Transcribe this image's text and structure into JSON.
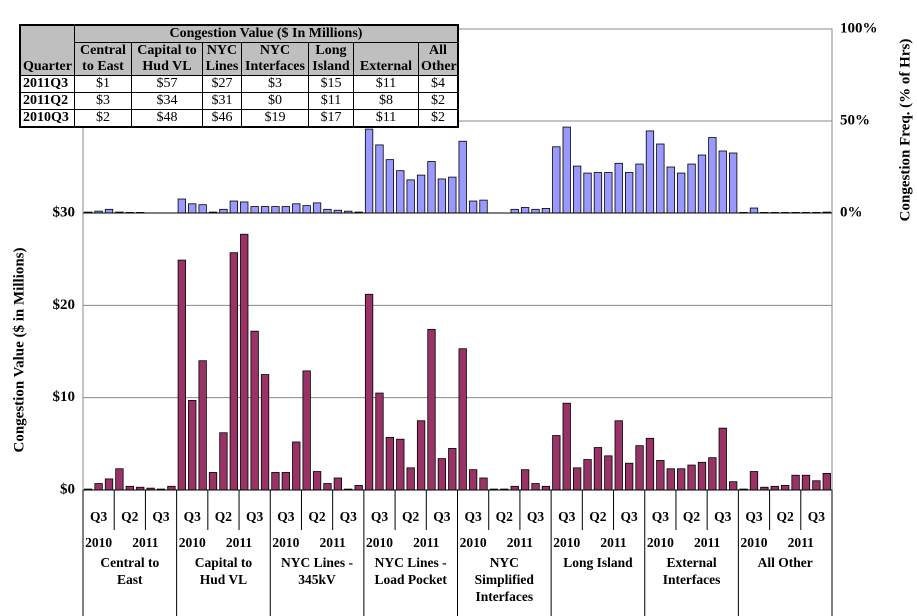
{
  "chart_data": {
    "type": "bar",
    "y_label": "Congestion Value ($ in Millions)",
    "y2_label": "Congestion Freq. (% of Hrs)",
    "groups": [
      "Central to East",
      "Capital to Hud VL",
      "NYC Lines - 345kV",
      "NYC Lines - Load Pocket",
      "NYC Simplified Interfaces",
      "Long Island",
      "External Interfaces",
      "All Other"
    ],
    "quarters": [
      "Q3",
      "Q2",
      "Q3"
    ],
    "years": [
      "2010",
      "2011"
    ],
    "series": [
      {
        "color": "#993366",
        "values": [
          [
            0.1,
            0.7,
            1.2,
            2.3,
            0.4,
            0.3,
            0.2,
            0.1,
            0.4
          ],
          [
            24.9,
            9.7,
            14.0,
            1.9,
            6.2,
            25.7,
            27.7,
            17.2,
            12.5
          ],
          [
            1.9,
            1.9,
            5.2,
            12.9,
            2.0,
            0.7,
            1.3,
            0.1,
            0.5
          ],
          [
            21.2,
            10.5,
            5.7,
            5.5,
            2.4,
            7.5,
            17.4,
            3.4,
            4.5
          ],
          [
            15.3,
            2.2,
            1.3,
            0.1,
            0.1,
            0.4,
            2.2,
            0.7,
            0.4
          ],
          [
            5.9,
            9.4,
            2.4,
            3.3,
            4.6,
            3.7,
            7.5,
            2.9,
            4.8
          ],
          [
            5.6,
            3.2,
            2.3,
            2.3,
            2.7,
            3.0,
            3.5,
            6.7,
            0.9
          ],
          [
            0.1,
            2.0,
            0.3,
            0.4,
            0.5,
            1.6,
            1.6,
            1.0,
            1.8
          ]
        ]
      },
      {
        "color": "#9999ff",
        "axis": "y2",
        "values": [
          [
            0.5,
            1,
            2,
            0.5,
            0.3,
            0.3,
            0,
            0,
            0
          ],
          [
            7.6,
            5,
            4.5,
            0.5,
            2,
            6.5,
            6,
            3.5,
            3.5
          ],
          [
            3.5,
            3.5,
            5,
            4,
            5.5,
            2,
            1.5,
            1,
            0.5
          ],
          [
            45.6,
            37,
            29,
            23,
            18,
            20.6,
            28,
            18.5,
            19.5
          ],
          [
            39,
            6.5,
            7,
            0,
            0,
            2,
            3,
            2,
            2.5
          ],
          [
            36,
            46.7,
            25.5,
            21.7,
            22,
            22,
            27,
            22,
            26.6
          ],
          [
            44.6,
            37.5,
            25,
            21.7,
            26.6,
            31.5,
            41,
            33.7,
            32.6
          ],
          [
            0.3,
            2.7,
            0.3,
            0.3,
            0.3,
            0.3,
            0.3,
            0.3,
            0.5
          ]
        ]
      }
    ],
    "ylim": [
      0,
      30
    ],
    "yticks": [
      {
        "value": 0,
        "label": "$0"
      },
      {
        "value": 10,
        "label": "$10"
      },
      {
        "value": 20,
        "label": "$20"
      },
      {
        "value": 30,
        "label": "$30"
      }
    ],
    "y2lim": [
      0,
      100
    ],
    "y2ticks": [
      {
        "value": 0,
        "label": "0%"
      },
      {
        "value": 50,
        "label": "50%"
      },
      {
        "value": 100,
        "label": "100%"
      }
    ],
    "grid": true
  },
  "table": {
    "title": "Congestion Value ($ In Millions)",
    "columns": [
      "Quarter",
      "Central to East",
      "Capital to Hud VL",
      "NYC Lines",
      "NYC Interfaces",
      "Long Island",
      "External",
      "All Other"
    ],
    "rows": [
      [
        "2011Q3",
        "$1",
        "$57",
        "$27",
        "$3",
        "$15",
        "$11",
        "$4"
      ],
      [
        "2011Q2",
        "$3",
        "$34",
        "$31",
        "$0",
        "$11",
        "$8",
        "$2"
      ],
      [
        "2010Q3",
        "$2",
        "$48",
        "$46",
        "$19",
        "$17",
        "$11",
        "$2"
      ]
    ]
  }
}
